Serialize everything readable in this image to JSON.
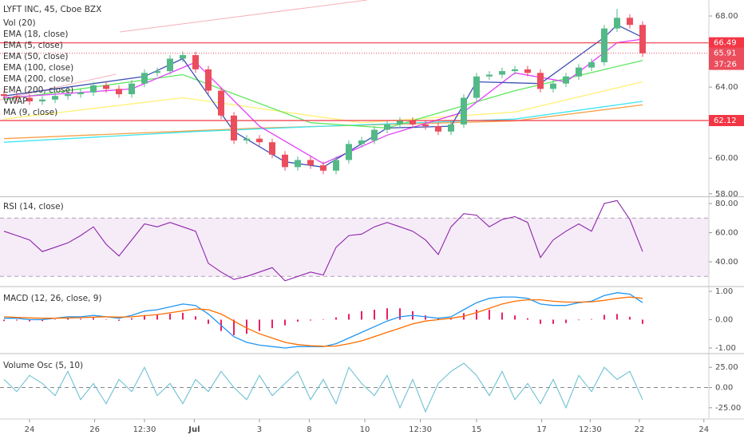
{
  "chart_data": [
    {
      "type": "candlestick",
      "title": "LYFT INC, 45, Cboe BZX",
      "legend": [
        "Vol (20)",
        "EMA (18, close)",
        "EMA (5, close)",
        "EMA (50, close)",
        "EMA (100, close)",
        "EMA (200, close)",
        "EMA (200, close)",
        "VWAP",
        "MA (9, close)"
      ],
      "open": [
        63.6,
        63.5,
        63.4,
        63.2,
        63.3,
        63.5,
        63.6,
        63.7,
        64.1,
        63.9,
        63.6,
        64.2,
        64.8,
        64.9,
        65.6,
        65.8,
        65.0,
        63.8,
        62.4,
        61.0,
        61.1,
        60.9,
        60.2,
        59.5,
        59.9,
        59.6,
        59.3,
        59.9,
        60.8,
        61.0,
        61.6,
        61.9,
        62.1,
        61.9,
        61.8,
        61.5,
        61.9,
        63.4,
        64.6,
        64.7,
        64.9,
        65.0,
        64.8,
        63.9,
        64.2,
        64.6,
        65.1,
        65.4,
        67.3,
        67.9,
        67.5
      ],
      "high": [
        63.8,
        63.7,
        63.6,
        63.5,
        63.7,
        63.8,
        63.9,
        64.3,
        64.3,
        64.1,
        64.4,
        65.0,
        65.1,
        65.8,
        66.0,
        66.0,
        65.2,
        64.0,
        62.6,
        61.3,
        61.3,
        61.1,
        60.4,
        60.1,
        60.1,
        59.8,
        60.1,
        61.0,
        61.2,
        61.8,
        62.1,
        62.3,
        62.3,
        62.1,
        62.0,
        62.1,
        63.6,
        64.8,
        64.9,
        65.1,
        65.2,
        65.2,
        65.0,
        64.4,
        64.8,
        65.3,
        65.6,
        67.5,
        68.4,
        68.1,
        67.7
      ],
      "low": [
        63.3,
        63.2,
        63.0,
        63.0,
        63.1,
        63.3,
        63.4,
        63.5,
        63.7,
        63.4,
        63.4,
        64.0,
        64.6,
        64.7,
        65.4,
        64.8,
        63.6,
        62.2,
        60.8,
        60.8,
        60.7,
        60.0,
        59.3,
        59.3,
        59.4,
        59.1,
        59.1,
        59.7,
        60.6,
        60.8,
        61.4,
        61.7,
        61.7,
        61.6,
        61.3,
        61.3,
        61.7,
        63.2,
        64.4,
        64.5,
        64.7,
        64.6,
        63.7,
        63.7,
        64.0,
        64.4,
        64.9,
        65.2,
        67.1,
        67.3,
        65.7
      ],
      "close": [
        63.5,
        63.4,
        63.2,
        63.3,
        63.5,
        63.6,
        63.7,
        64.1,
        63.9,
        63.6,
        64.2,
        64.8,
        64.9,
        65.6,
        65.8,
        65.0,
        63.8,
        62.4,
        61.0,
        61.1,
        60.9,
        60.2,
        59.5,
        59.9,
        59.6,
        59.3,
        59.9,
        60.8,
        61.0,
        61.6,
        61.9,
        62.1,
        61.9,
        61.8,
        61.5,
        61.9,
        63.4,
        64.6,
        64.7,
        64.9,
        65.0,
        64.8,
        63.9,
        64.2,
        64.6,
        65.1,
        65.4,
        67.3,
        67.9,
        67.5,
        65.9
      ],
      "up_color": "#53b987",
      "down_color": "#eb4d5c",
      "series": [
        {
          "color": "#f7a046",
          "x": [
            0,
            20,
            40,
            50
          ],
          "values": [
            61.1,
            61.7,
            62.1,
            63.0
          ]
        },
        {
          "color": "#3ee6f0",
          "x": [
            0,
            15,
            25,
            40,
            50
          ],
          "values": [
            60.9,
            61.5,
            61.8,
            62.2,
            63.2
          ]
        },
        {
          "color": "#fff176",
          "x": [
            0,
            14,
            28,
            40,
            50
          ],
          "values": [
            62.2,
            63.4,
            62.0,
            62.6,
            64.3
          ]
        },
        {
          "color": "#5ee85e",
          "x": [
            0,
            14,
            24,
            30,
            40,
            50
          ],
          "values": [
            63.3,
            64.7,
            62.0,
            61.7,
            63.8,
            65.5
          ]
        },
        {
          "color": "#e040fb",
          "x": [
            0,
            10,
            15,
            20,
            25,
            30,
            36,
            40,
            44,
            48,
            50
          ],
          "values": [
            63.4,
            63.9,
            65.4,
            61.8,
            59.7,
            61.3,
            62.6,
            64.8,
            64.3,
            66.5,
            66.7
          ]
        },
        {
          "color": "#3f51b5",
          "x": [
            0,
            11,
            14,
            18,
            22,
            25,
            30,
            35,
            37,
            42,
            47,
            48,
            50
          ],
          "values": [
            63.5,
            64.6,
            65.6,
            61.5,
            59.8,
            59.5,
            61.7,
            61.8,
            64.3,
            64.2,
            66.8,
            67.5,
            66.8
          ]
        }
      ],
      "hlines": [
        {
          "value": 66.49,
          "color": "#f23645"
        },
        {
          "value": 62.12,
          "color": "#f23645"
        }
      ],
      "last_price": 65.91,
      "countdown": "37:26",
      "xlim": [
        -0.3125,
        55.19
      ],
      "xticks": [
        {
          "value": 2.0,
          "label": "24"
        },
        {
          "value": 7.1,
          "label": "26"
        },
        {
          "value": 11,
          "label": "12:30"
        },
        {
          "value": 14.9,
          "label": "Jul"
        },
        {
          "value": 20,
          "label": "3"
        },
        {
          "value": 23.9,
          "label": "8"
        },
        {
          "value": 28.25,
          "label": "10"
        },
        {
          "value": 32.6,
          "label": "12:30"
        },
        {
          "value": 37,
          "label": "15"
        },
        {
          "value": 42.1,
          "label": "17"
        },
        {
          "value": 45.9,
          "label": "12:30"
        },
        {
          "value": 49.75,
          "label": "22"
        },
        {
          "value": 54.8,
          "label": "24"
        }
      ],
      "ylim": [
        57.9,
        68.9
      ],
      "yticks": [
        {
          "value": 58,
          "label": "58.00"
        },
        {
          "value": 60,
          "label": "60.00"
        },
        {
          "value": 62,
          "label": "62.00"
        },
        {
          "value": 64,
          "label": "64.00"
        },
        {
          "value": 66,
          "label": "66.00"
        },
        {
          "value": 68,
          "label": "68.00"
        }
      ]
    },
    {
      "type": "line",
      "title": "RSI (14, close)",
      "color": "#8e24aa",
      "values": [
        61,
        58,
        55,
        47,
        50,
        53,
        58,
        64,
        52,
        44,
        55,
        66,
        64,
        67,
        64,
        61,
        39,
        33,
        28,
        30,
        33,
        36,
        27,
        30,
        33,
        31,
        50,
        58,
        59,
        64,
        67,
        64,
        61,
        55,
        45,
        64,
        73,
        72,
        64,
        69,
        71,
        67,
        43,
        55,
        61,
        66,
        61,
        80,
        82,
        69,
        47
      ],
      "band": [
        30,
        70
      ],
      "ylim": [
        23.6,
        83.8
      ],
      "yticks": [
        {
          "value": 40,
          "label": "40.00"
        },
        {
          "value": 60,
          "label": "60.00"
        },
        {
          "value": 80,
          "label": "80.00"
        }
      ]
    },
    {
      "type": "macd",
      "title": "MACD (12, 26, close, 9)",
      "series": [
        {
          "color": "#2196f3",
          "values": [
            0.05,
            0.05,
            0.0,
            0.0,
            0.05,
            0.1,
            0.1,
            0.15,
            0.1,
            0.05,
            0.15,
            0.3,
            0.35,
            0.45,
            0.55,
            0.5,
            0.2,
            -0.2,
            -0.6,
            -0.8,
            -0.9,
            -0.95,
            -1.0,
            -0.95,
            -0.95,
            -0.95,
            -0.85,
            -0.65,
            -0.45,
            -0.25,
            -0.05,
            0.1,
            0.15,
            0.1,
            0.05,
            0.1,
            0.35,
            0.6,
            0.75,
            0.8,
            0.8,
            0.75,
            0.55,
            0.5,
            0.5,
            0.6,
            0.65,
            0.85,
            0.95,
            0.9,
            0.6
          ]
        },
        {
          "color": "#ff6d00",
          "values": [
            0.1,
            0.08,
            0.06,
            0.05,
            0.05,
            0.06,
            0.07,
            0.09,
            0.1,
            0.09,
            0.1,
            0.14,
            0.18,
            0.24,
            0.31,
            0.38,
            0.35,
            0.2,
            -0.05,
            -0.3,
            -0.5,
            -0.65,
            -0.8,
            -0.88,
            -0.92,
            -0.94,
            -0.93,
            -0.85,
            -0.75,
            -0.6,
            -0.45,
            -0.3,
            -0.15,
            -0.05,
            0.0,
            0.05,
            0.12,
            0.25,
            0.4,
            0.55,
            0.65,
            0.7,
            0.7,
            0.65,
            0.62,
            0.62,
            0.63,
            0.68,
            0.75,
            0.8,
            0.75
          ]
        }
      ],
      "histogram": {
        "color": "#e91e63",
        "values": [
          -0.05,
          -0.03,
          -0.06,
          -0.05,
          0,
          0.04,
          0.03,
          0.06,
          0,
          -0.04,
          0.05,
          0.16,
          0.17,
          0.21,
          0.24,
          0.12,
          -0.15,
          -0.4,
          -0.55,
          -0.5,
          -0.4,
          -0.3,
          -0.2,
          -0.07,
          -0.03,
          -0.01,
          0.08,
          0.2,
          0.3,
          0.35,
          0.4,
          0.4,
          0.3,
          0.15,
          0.05,
          0.05,
          0.23,
          0.35,
          0.35,
          0.25,
          0.15,
          0.05,
          -0.15,
          -0.15,
          -0.12,
          -0.02,
          0.02,
          0.17,
          0.2,
          0.1,
          -0.15
        ]
      },
      "ylim": [
        -1.17,
        1.14
      ],
      "yticks": [
        {
          "value": 1,
          "label": "1.00"
        },
        {
          "value": 0,
          "label": "0.00"
        },
        {
          "value": -1,
          "label": "-1.00"
        }
      ]
    },
    {
      "type": "line",
      "title": "Volume Osc (5, 10)",
      "color": "#6fc1d3",
      "values": [
        10,
        -5,
        15,
        5,
        -10,
        20,
        -15,
        5,
        -20,
        10,
        -5,
        25,
        -10,
        5,
        -20,
        10,
        -5,
        20,
        0,
        -15,
        15,
        -10,
        5,
        20,
        -15,
        10,
        -20,
        25,
        5,
        -10,
        15,
        -25,
        10,
        -30,
        5,
        20,
        30,
        15,
        -10,
        20,
        -15,
        5,
        -20,
        10,
        -25,
        15,
        -5,
        25,
        10,
        20,
        -15
      ],
      "zero": 0,
      "ylim": [
        -39,
        41
      ],
      "yticks": [
        {
          "value": 25,
          "label": "25.00"
        },
        {
          "value": 0,
          "label": "0.00"
        },
        {
          "value": -25,
          "label": "-25.00"
        }
      ]
    }
  ]
}
